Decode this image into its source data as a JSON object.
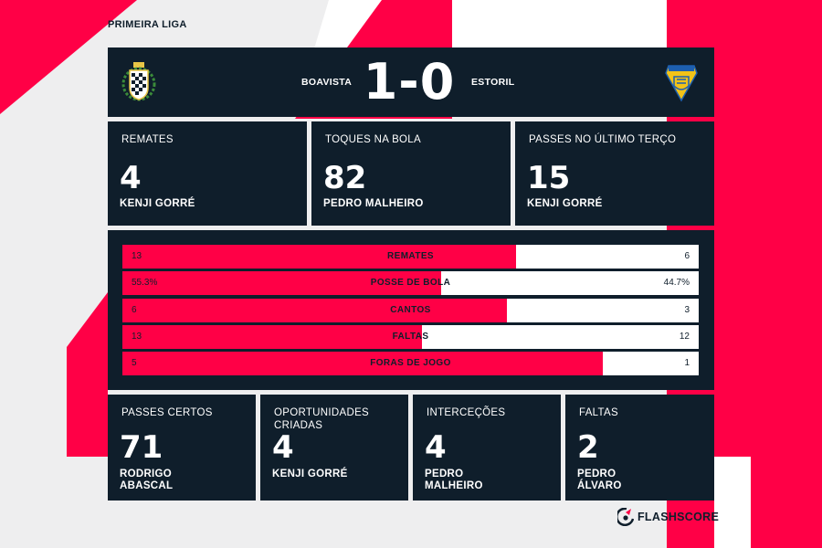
{
  "league": "PRIMEIRA LIGA",
  "match": {
    "home_team": "BOAVISTA",
    "away_team": "ESTORIL",
    "score": "1-0",
    "home_crest": "boavista-crest-icon",
    "away_crest": "estoril-crest-icon"
  },
  "top_cards": [
    {
      "label": "REMATES",
      "value": "4",
      "player": "KENJI GORRÉ"
    },
    {
      "label": "TOQUES NA BOLA",
      "value": "82",
      "player": "PEDRO MALHEIRO"
    },
    {
      "label": "PASSES NO ÚLTIMO TERÇO",
      "value": "15",
      "player": "KENJI GORRÉ"
    }
  ],
  "stats": [
    {
      "name": "REMATES",
      "home": "13",
      "away": "6",
      "home_share": 0.683
    },
    {
      "name": "POSSE DE BOLA",
      "home": "55.3%",
      "away": "44.7%",
      "home_share": 0.553
    },
    {
      "name": "CANTOS",
      "home": "6",
      "away": "3",
      "home_share": 0.667
    },
    {
      "name": "FALTAS",
      "home": "13",
      "away": "12",
      "home_share": 0.52
    },
    {
      "name": "FORAS DE JOGO",
      "home": "5",
      "away": "1",
      "home_share": 0.833
    }
  ],
  "bottom_cards": [
    {
      "label": "PASSES CERTOS",
      "value": "71",
      "player": "RODRIGO ABASCAL"
    },
    {
      "label": "OPORTUNIDADES CRIADAS",
      "value": "4",
      "player": "KENJI GORRÉ"
    },
    {
      "label": "INTERCEÇÕES",
      "value": "4",
      "player": "PEDRO MALHEIRO"
    },
    {
      "label": "FALTAS",
      "value": "2",
      "player": "PEDRO ÁLVARO"
    }
  ],
  "brand": {
    "name": "FLASHSCORE",
    "icon": "flashscore-logo-icon"
  },
  "colors": {
    "accent": "#ff0046",
    "panel": "#0f1e2b",
    "background": "#eeeeef",
    "text": "#ffffff"
  }
}
